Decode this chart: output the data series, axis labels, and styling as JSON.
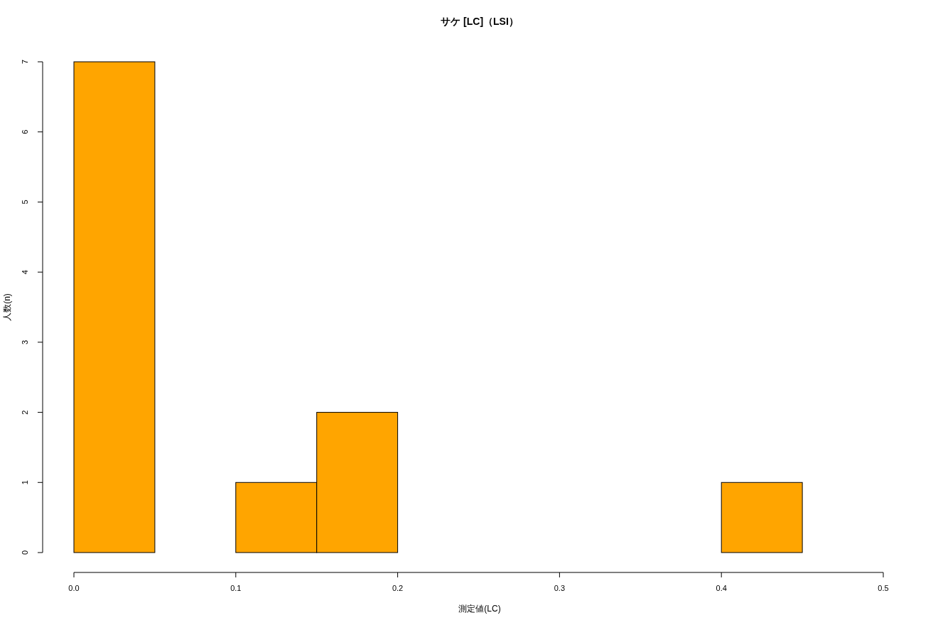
{
  "chart_data": {
    "type": "histogram",
    "title": "サケ [LC]（LSI）",
    "xlabel": "測定値(LC)",
    "ylabel": "人数(n)",
    "bins": [
      0,
      0.05,
      0.1,
      0.15,
      0.2,
      0.25,
      0.3,
      0.35,
      0.4,
      0.45
    ],
    "values": [
      7,
      0,
      1,
      2,
      0,
      0,
      0,
      0,
      1
    ],
    "color": "#ffa500",
    "xlim": [
      0,
      0.5
    ],
    "xticks": [
      {
        "value": 0,
        "label": "0.0"
      },
      0.1,
      0.2,
      0.3,
      0.4,
      0.5
    ],
    "ylim": [
      0,
      7
    ],
    "yticks": [
      0,
      1,
      2,
      3,
      4,
      5,
      6,
      7
    ],
    "grid": false
  }
}
